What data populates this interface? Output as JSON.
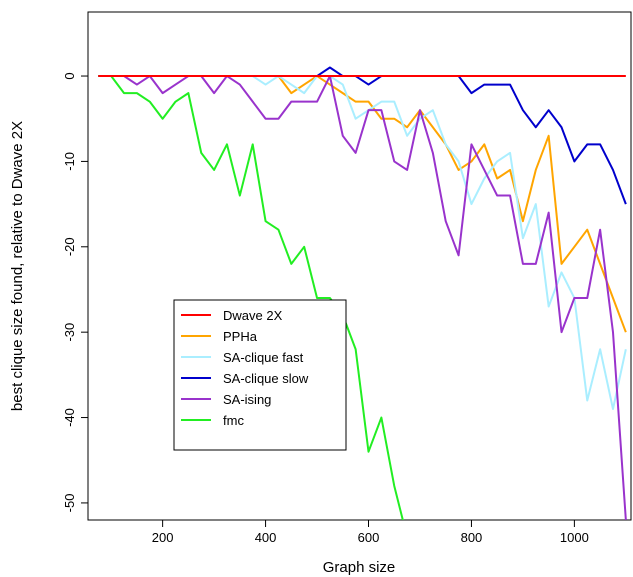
{
  "chart_data": {
    "type": "line",
    "title": "",
    "xlabel": "Graph size",
    "ylabel": "best clique size found, relative to Dwave 2X",
    "xlim": [
      55,
      1110
    ],
    "ylim": [
      -52,
      7.5
    ],
    "xticks": [
      200,
      400,
      600,
      800,
      1000
    ],
    "yticks": [
      0,
      -10,
      -20,
      -30,
      -40,
      -50
    ],
    "legend_position": "bottom-left",
    "grid": false,
    "series": [
      {
        "name": "Dwave 2X",
        "color": "#ff0000",
        "x": [
          75,
          1100
        ],
        "y": [
          0,
          0
        ]
      },
      {
        "name": "PPHa",
        "color": "#ffa500",
        "x": [
          75,
          100,
          125,
          150,
          175,
          200,
          225,
          250,
          275,
          300,
          325,
          350,
          375,
          400,
          425,
          450,
          475,
          500,
          525,
          550,
          575,
          600,
          625,
          650,
          675,
          700,
          725,
          750,
          775,
          800,
          825,
          850,
          875,
          900,
          925,
          950,
          975,
          1000,
          1025,
          1050,
          1075,
          1100
        ],
        "y": [
          0,
          0,
          0,
          0,
          0,
          0,
          0,
          0,
          0,
          0,
          0,
          0,
          0,
          0,
          0,
          -2,
          -1,
          0,
          -1,
          -2,
          -3,
          -3,
          -5,
          -5,
          -6,
          -4,
          -6,
          -8,
          -11,
          -10,
          -8,
          -12,
          -11,
          -17,
          -11,
          -7,
          -22,
          -20,
          -18,
          -22,
          -26,
          -30
        ]
      },
      {
        "name": "SA-clique fast",
        "color": "#aaeeff",
        "x": [
          75,
          100,
          125,
          150,
          175,
          200,
          225,
          250,
          275,
          300,
          325,
          350,
          375,
          400,
          425,
          450,
          475,
          500,
          525,
          550,
          575,
          600,
          625,
          650,
          675,
          700,
          725,
          750,
          775,
          800,
          825,
          850,
          875,
          900,
          925,
          950,
          975,
          1000,
          1025,
          1050,
          1075,
          1100
        ],
        "y": [
          0,
          0,
          0,
          0,
          0,
          0,
          0,
          0,
          0,
          0,
          0,
          0,
          0,
          -1,
          0,
          -1,
          -2,
          0,
          0,
          -1,
          -5,
          -4,
          -3,
          -3,
          -7,
          -5,
          -4,
          -8,
          -10,
          -15,
          -12,
          -10,
          -9,
          -19,
          -15,
          -27,
          -23,
          -26,
          -38,
          -32,
          -39,
          -32
        ]
      },
      {
        "name": "SA-clique slow",
        "color": "#0000cc",
        "x": [
          75,
          100,
          125,
          150,
          175,
          200,
          225,
          250,
          275,
          300,
          325,
          350,
          375,
          400,
          425,
          450,
          475,
          500,
          525,
          550,
          575,
          600,
          625,
          650,
          675,
          700,
          725,
          750,
          775,
          800,
          825,
          850,
          875,
          900,
          925,
          950,
          975,
          1000,
          1025,
          1050,
          1075,
          1100
        ],
        "y": [
          0,
          0,
          0,
          0,
          0,
          0,
          0,
          0,
          0,
          0,
          0,
          0,
          0,
          0,
          0,
          0,
          0,
          0,
          1,
          0,
          0,
          -1,
          0,
          0,
          0,
          0,
          0,
          0,
          0,
          -2,
          -1,
          -1,
          -1,
          -4,
          -6,
          -4,
          -6,
          -10,
          -8,
          -8,
          -11,
          -15
        ]
      },
      {
        "name": "SA-ising",
        "color": "#9933cc",
        "x": [
          75,
          100,
          125,
          150,
          175,
          200,
          225,
          250,
          275,
          300,
          325,
          350,
          375,
          400,
          425,
          450,
          475,
          500,
          525,
          550,
          575,
          600,
          625,
          650,
          675,
          700,
          725,
          750,
          775,
          800,
          825,
          850,
          875,
          900,
          925,
          950,
          975,
          1000,
          1025,
          1050,
          1075,
          1100
        ],
        "y": [
          0,
          0,
          0,
          -1,
          0,
          -2,
          -1,
          0,
          0,
          -2,
          0,
          -1,
          -3,
          -5,
          -5,
          -3,
          -3,
          -3,
          0,
          -7,
          -9,
          -4,
          -4,
          -10,
          -11,
          -4,
          -9,
          -17,
          -21,
          -8,
          -11,
          -14,
          -14,
          -22,
          -22,
          -16,
          -30,
          -26,
          -26,
          -18,
          -30,
          -52
        ]
      },
      {
        "name": "fmc",
        "color": "#22ee22",
        "x": [
          75,
          100,
          125,
          150,
          175,
          200,
          225,
          250,
          275,
          300,
          325,
          350,
          375,
          400,
          425,
          450,
          475,
          500,
          525,
          550,
          575,
          600,
          625,
          650,
          675
        ],
        "y": [
          0,
          0,
          -2,
          -2,
          -3,
          -5,
          -3,
          -2,
          -9,
          -11,
          -8,
          -14,
          -8,
          -17,
          -18,
          -22,
          -20,
          -26,
          -26,
          -28,
          -32,
          -44,
          -40,
          -48,
          -54
        ]
      }
    ]
  }
}
